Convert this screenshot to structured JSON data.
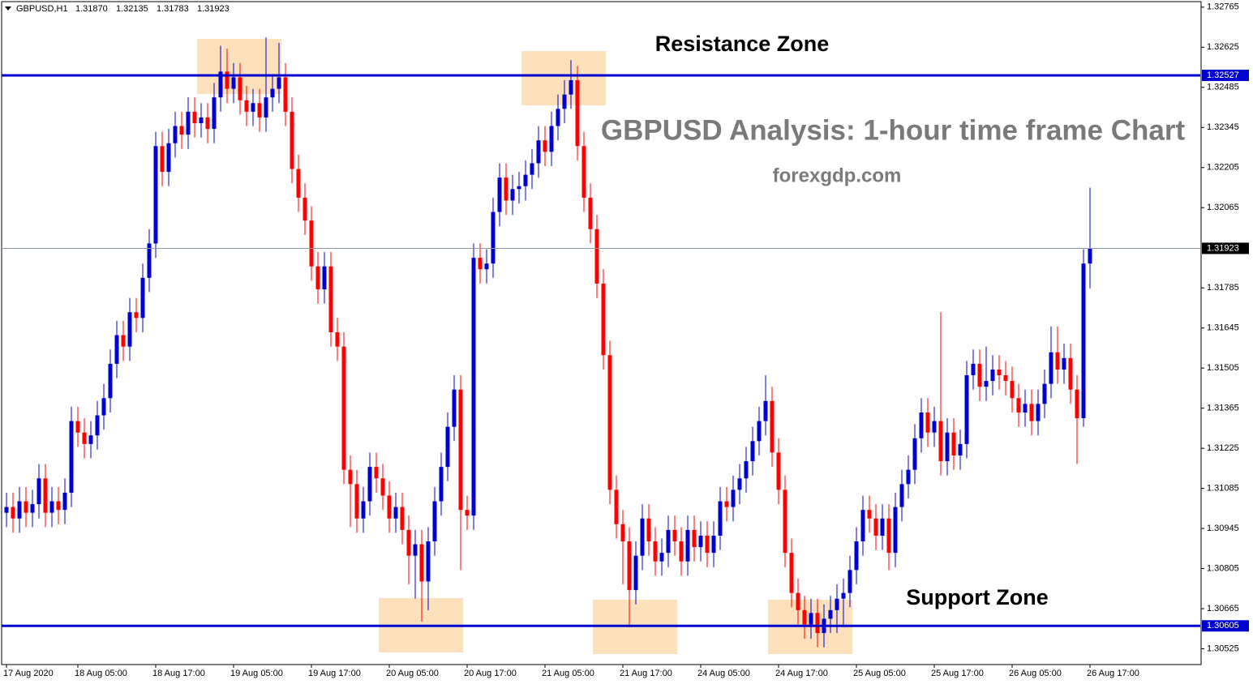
{
  "chart_data": {
    "type": "candlestick",
    "symbol": "GBPUSD,H1",
    "header_values": [
      "1.31870",
      "1.32135",
      "1.31783",
      "1.31923"
    ],
    "title": "GBPUSD Analysis: 1-hour time frame Chart",
    "subtitle": "forexgdp.com",
    "annotations": [
      "Resistance Zone",
      "Support Zone"
    ],
    "up_color": "#0000d0",
    "down_color": "#ff0000",
    "open": [
      1.31,
      1.3102,
      1.3098,
      1.3104,
      1.31,
      1.3103,
      1.3112,
      1.31,
      1.3104,
      1.3101,
      1.3107,
      1.3132,
      1.3128,
      1.3124,
      1.3127,
      1.3134,
      1.314,
      1.3152,
      1.3162,
      1.3158,
      1.317,
      1.3168,
      1.3182,
      1.3194,
      1.3228,
      1.3219,
      1.3229,
      1.3235,
      1.3232,
      1.324,
      1.3236,
      1.3238,
      1.3234,
      1.3245,
      1.3254,
      1.3248,
      1.3252,
      1.3244,
      1.324,
      1.3243,
      1.3238,
      1.3245,
      1.3248,
      1.3252,
      1.324,
      1.322,
      1.321,
      1.3202,
      1.3186,
      1.3178,
      1.3186,
      1.3163,
      1.3158,
      1.3115,
      1.311,
      1.3098,
      1.3104,
      1.3116,
      1.3112,
      1.3106,
      1.3098,
      1.3102,
      1.3094,
      1.3085,
      1.3089,
      1.3076,
      1.309,
      1.3104,
      1.3116,
      1.313,
      1.3143,
      1.3101,
      1.3099,
      1.3189,
      1.3185,
      1.3187,
      1.3205,
      1.3217,
      1.3209,
      1.3213,
      1.3214,
      1.3218,
      1.3222,
      1.323,
      1.3226,
      1.3235,
      1.3241,
      1.3246,
      1.3251,
      1.3228,
      1.321,
      1.3199,
      1.318,
      1.3155,
      1.3108,
      1.3096,
      1.309,
      1.3073,
      1.3085,
      1.3098,
      1.309,
      1.3083,
      1.3086,
      1.3094,
      1.309,
      1.3083,
      1.3094,
      1.3088,
      1.3092,
      1.3086,
      1.3092,
      1.3104,
      1.3102,
      1.3108,
      1.3112,
      1.3118,
      1.3125,
      1.3132,
      1.3139,
      1.3121,
      1.3108,
      1.3086,
      1.3072,
      1.3066,
      1.3061,
      1.3065,
      1.3058,
      1.3063,
      1.3066,
      1.307,
      1.3072,
      1.308,
      1.309,
      1.3101,
      1.3098,
      1.3092,
      1.3098,
      1.3086,
      1.3102,
      1.311,
      1.3115,
      1.3126,
      1.3135,
      1.3128,
      1.3132,
      1.3118,
      1.3128,
      1.312,
      1.3124,
      1.3148,
      1.3152,
      1.3144,
      1.3146,
      1.315,
      1.3148,
      1.3146,
      1.314,
      1.3135,
      1.3138,
      1.3132,
      1.3138,
      1.3145,
      1.3156,
      1.315,
      1.3154,
      1.3143,
      1.3133,
      1.3187
    ],
    "high": [
      1.3107,
      1.3107,
      1.3109,
      1.3109,
      1.3108,
      1.3117,
      1.3117,
      1.3109,
      1.3109,
      1.3112,
      1.3137,
      1.3137,
      1.3133,
      1.3132,
      1.3139,
      1.3145,
      1.3157,
      1.3167,
      1.3167,
      1.3175,
      1.3175,
      1.3187,
      1.3199,
      1.3233,
      1.3233,
      1.3234,
      1.324,
      1.324,
      1.3245,
      1.3245,
      1.3243,
      1.3243,
      1.325,
      1.3263,
      1.3262,
      1.3257,
      1.3257,
      1.3249,
      1.3248,
      1.3248,
      1.3266,
      1.3253,
      1.3264,
      1.3257,
      1.3245,
      1.3225,
      1.3215,
      1.3207,
      1.3191,
      1.3191,
      1.3191,
      1.3168,
      1.3163,
      1.312,
      1.3115,
      1.3109,
      1.3121,
      1.3121,
      1.3117,
      1.3111,
      1.3107,
      1.3107,
      1.3099,
      1.3094,
      1.3094,
      1.3095,
      1.3109,
      1.3121,
      1.3135,
      1.3148,
      1.3148,
      1.3106,
      1.3194,
      1.3194,
      1.3192,
      1.321,
      1.3222,
      1.3222,
      1.3218,
      1.3219,
      1.3223,
      1.3227,
      1.3235,
      1.3235,
      1.324,
      1.3246,
      1.3251,
      1.3258,
      1.3256,
      1.3233,
      1.3215,
      1.3204,
      1.3185,
      1.316,
      1.3113,
      1.3101,
      1.3095,
      1.309,
      1.3103,
      1.3103,
      1.3095,
      1.3091,
      1.3099,
      1.3099,
      1.3095,
      1.3099,
      1.3099,
      1.3097,
      1.3097,
      1.3097,
      1.3109,
      1.3109,
      1.3113,
      1.3117,
      1.3123,
      1.313,
      1.3137,
      1.3148,
      1.3144,
      1.3126,
      1.3113,
      1.3091,
      1.3077,
      1.3071,
      1.307,
      1.307,
      1.3068,
      1.3071,
      1.3075,
      1.3077,
      1.3085,
      1.3095,
      1.3106,
      1.3106,
      1.3103,
      1.3103,
      1.3103,
      1.3107,
      1.3115,
      1.312,
      1.3131,
      1.314,
      1.314,
      1.3137,
      1.317,
      1.3133,
      1.3133,
      1.3129,
      1.3153,
      1.3157,
      1.3157,
      1.3158,
      1.3155,
      1.3155,
      1.3153,
      1.3151,
      1.3145,
      1.3143,
      1.3143,
      1.3143,
      1.315,
      1.3165,
      1.3165,
      1.3159,
      1.3159,
      1.3148,
      1.3192,
      1.32135
    ],
    "low": [
      1.3095,
      1.3093,
      1.3093,
      1.3095,
      1.3095,
      1.3098,
      1.3095,
      1.3095,
      1.3096,
      1.3096,
      1.3102,
      1.3123,
      1.3119,
      1.3119,
      1.3122,
      1.3129,
      1.3135,
      1.3147,
      1.3153,
      1.3153,
      1.3163,
      1.3163,
      1.3177,
      1.3189,
      1.3214,
      1.3214,
      1.3224,
      1.3227,
      1.3227,
      1.3231,
      1.3231,
      1.3229,
      1.3229,
      1.324,
      1.3243,
      1.3243,
      1.3239,
      1.3235,
      1.3235,
      1.3233,
      1.3233,
      1.324,
      1.3243,
      1.3235,
      1.3215,
      1.3205,
      1.3197,
      1.3181,
      1.3173,
      1.3173,
      1.3158,
      1.3153,
      1.311,
      1.3095,
      1.3093,
      1.3093,
      1.3099,
      1.3107,
      1.3101,
      1.3093,
      1.3093,
      1.3089,
      1.3075,
      1.307,
      1.3062,
      1.3066,
      1.3085,
      1.3099,
      1.3111,
      1.3125,
      1.308,
      1.3094,
      1.3094,
      1.318,
      1.318,
      1.3182,
      1.32,
      1.3204,
      1.3204,
      1.3208,
      1.3209,
      1.3213,
      1.3217,
      1.3221,
      1.3221,
      1.323,
      1.3236,
      1.3241,
      1.3223,
      1.3205,
      1.3194,
      1.3175,
      1.315,
      1.3103,
      1.3091,
      1.3075,
      1.306,
      1.3068,
      1.308,
      1.3085,
      1.3078,
      1.3078,
      1.3081,
      1.3085,
      1.3078,
      1.3078,
      1.3083,
      1.3083,
      1.3081,
      1.3081,
      1.3087,
      1.3097,
      1.3097,
      1.3103,
      1.3107,
      1.3113,
      1.312,
      1.3127,
      1.3116,
      1.3103,
      1.3081,
      1.3067,
      1.3061,
      1.3056,
      1.3056,
      1.3053,
      1.3053,
      1.3058,
      1.3058,
      1.306,
      1.3067,
      1.3075,
      1.3085,
      1.3093,
      1.3087,
      1.3087,
      1.308,
      1.3081,
      1.3097,
      1.3105,
      1.311,
      1.3121,
      1.3123,
      1.3123,
      1.3113,
      1.3113,
      1.3115,
      1.3115,
      1.3119,
      1.3143,
      1.3139,
      1.3139,
      1.3141,
      1.3143,
      1.3141,
      1.3135,
      1.313,
      1.313,
      1.3127,
      1.3127,
      1.3133,
      1.314,
      1.3145,
      1.3145,
      1.3138,
      1.3117,
      1.313,
      1.31783
    ],
    "close": [
      1.3102,
      1.3098,
      1.3104,
      1.31,
      1.3103,
      1.3112,
      1.31,
      1.3104,
      1.3101,
      1.3107,
      1.3132,
      1.3128,
      1.3124,
      1.3127,
      1.3134,
      1.314,
      1.3152,
      1.3162,
      1.3158,
      1.317,
      1.3168,
      1.3182,
      1.3194,
      1.3228,
      1.3219,
      1.3229,
      1.3235,
      1.3232,
      1.324,
      1.3236,
      1.3238,
      1.3234,
      1.3245,
      1.3254,
      1.3248,
      1.3252,
      1.3244,
      1.324,
      1.3243,
      1.3238,
      1.3245,
      1.3248,
      1.3252,
      1.324,
      1.322,
      1.321,
      1.3202,
      1.3186,
      1.3178,
      1.3186,
      1.3163,
      1.3158,
      1.3115,
      1.311,
      1.3098,
      1.3104,
      1.3116,
      1.3112,
      1.3106,
      1.3098,
      1.3102,
      1.3094,
      1.3085,
      1.3089,
      1.3076,
      1.309,
      1.3104,
      1.3116,
      1.313,
      1.3143,
      1.3101,
      1.3099,
      1.3189,
      1.3185,
      1.3187,
      1.3205,
      1.3217,
      1.3209,
      1.3213,
      1.3214,
      1.3218,
      1.3222,
      1.323,
      1.3226,
      1.3235,
      1.3241,
      1.3246,
      1.3251,
      1.3228,
      1.321,
      1.3199,
      1.318,
      1.3155,
      1.3108,
      1.3096,
      1.309,
      1.3073,
      1.3085,
      1.3098,
      1.309,
      1.3083,
      1.3086,
      1.3094,
      1.309,
      1.3083,
      1.3094,
      1.3088,
      1.3092,
      1.3086,
      1.3092,
      1.3104,
      1.3102,
      1.3108,
      1.3112,
      1.3118,
      1.3125,
      1.3132,
      1.3139,
      1.3121,
      1.3108,
      1.3086,
      1.3072,
      1.3066,
      1.3061,
      1.3065,
      1.3058,
      1.3063,
      1.3066,
      1.307,
      1.3072,
      1.308,
      1.309,
      1.3101,
      1.3098,
      1.3092,
      1.3098,
      1.3086,
      1.3102,
      1.311,
      1.3115,
      1.3126,
      1.3135,
      1.3128,
      1.3132,
      1.3118,
      1.3128,
      1.312,
      1.3124,
      1.3148,
      1.3152,
      1.3144,
      1.3146,
      1.315,
      1.3148,
      1.3146,
      1.314,
      1.3135,
      1.3138,
      1.3132,
      1.3138,
      1.3145,
      1.3156,
      1.315,
      1.3154,
      1.3143,
      1.3133,
      1.3187,
      1.31923
    ],
    "xlim": [
      -1,
      184
    ],
    "xticks": [
      {
        "value": 0,
        "label": "17 Aug 2020"
      },
      {
        "value": 11,
        "label": "18 Aug 05:00"
      },
      {
        "value": 23,
        "label": "18 Aug 17:00"
      },
      {
        "value": 35,
        "label": "19 Aug 05:00"
      },
      {
        "value": 47,
        "label": "19 Aug 17:00"
      },
      {
        "value": 59,
        "label": "20 Aug 05:00"
      },
      {
        "value": 71,
        "label": "20 Aug 17:00"
      },
      {
        "value": 83,
        "label": "21 Aug 05:00"
      },
      {
        "value": 95,
        "label": "21 Aug 17:00"
      },
      {
        "value": 107,
        "label": "24 Aug 05:00"
      },
      {
        "value": 119,
        "label": "24 Aug 17:00"
      },
      {
        "value": 131,
        "label": "25 Aug 05:00"
      },
      {
        "value": 143,
        "label": "25 Aug 17:00"
      },
      {
        "value": 155,
        "label": "26 Aug 05:00"
      },
      {
        "value": 167,
        "label": "26 Aug 17:00"
      }
    ],
    "ylim": [
      1.3047,
      1.3279
    ],
    "yticks": [
      1.32765,
      1.32625,
      1.32485,
      1.32345,
      1.32205,
      1.32065,
      1.31785,
      1.31645,
      1.31505,
      1.31365,
      1.31225,
      1.31085,
      1.30945,
      1.30805,
      1.30665,
      1.30525
    ],
    "levels": [
      {
        "value": 1.32527,
        "color": "#0000d0"
      },
      {
        "value": 1.31923,
        "color": "#8a9aa8"
      },
      {
        "value": 1.30605,
        "color": "#0000d0"
      }
    ]
  }
}
